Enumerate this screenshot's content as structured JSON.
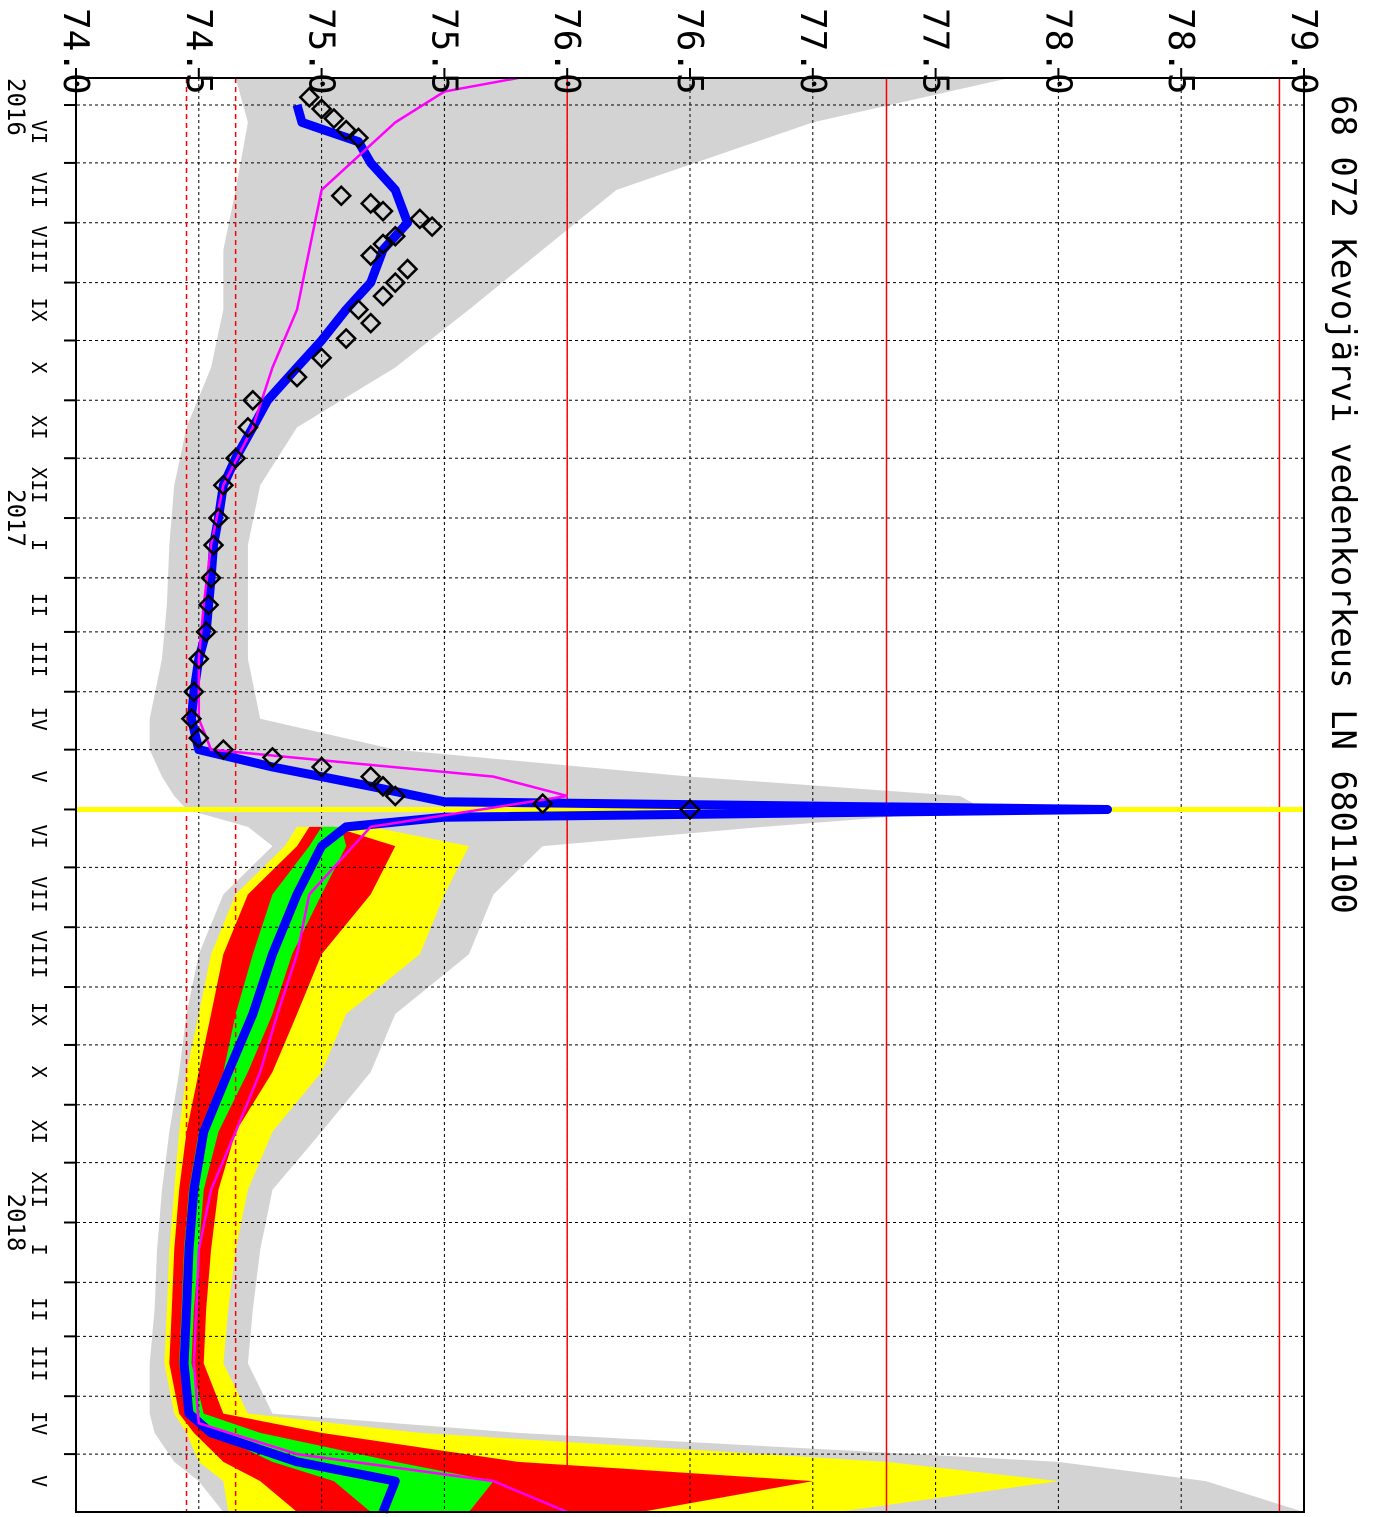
{
  "chart_data": {
    "type": "line",
    "title": "68 072 Kevojärvi vedenkorkeus LN 6801100",
    "x_unit": "date",
    "y_ticks": [
      "74.0",
      "74.5",
      "75.0",
      "75.5",
      "76.0",
      "76.5",
      "77.0",
      "77.5",
      "78.0",
      "78.5",
      "79.0"
    ],
    "ylim": [
      74.0,
      79.0
    ],
    "xlim": [
      "2016-05-18",
      "2018-05-31"
    ],
    "grid": true,
    "year_labels": [
      {
        "text": "2016",
        "date": "2016-05-18"
      },
      {
        "text": "2017",
        "date": "2017-01-01"
      },
      {
        "text": "2018",
        "date": "2018-01-01"
      }
    ],
    "month_labels": [
      {
        "text": "VI",
        "date": "2016-06-15"
      },
      {
        "text": "VII",
        "date": "2016-07-15"
      },
      {
        "text": "VIII",
        "date": "2016-08-15"
      },
      {
        "text": "IX",
        "date": "2016-09-15"
      },
      {
        "text": "X",
        "date": "2016-10-15"
      },
      {
        "text": "XI",
        "date": "2016-11-15"
      },
      {
        "text": "XII",
        "date": "2016-12-15"
      },
      {
        "text": "I",
        "date": "2017-01-15"
      },
      {
        "text": "II",
        "date": "2017-02-15"
      },
      {
        "text": "III",
        "date": "2017-03-15"
      },
      {
        "text": "IV",
        "date": "2017-04-15"
      },
      {
        "text": "V",
        "date": "2017-05-15"
      },
      {
        "text": "VI",
        "date": "2017-06-15"
      },
      {
        "text": "VII",
        "date": "2017-07-15"
      },
      {
        "text": "VIII",
        "date": "2017-08-15"
      },
      {
        "text": "IX",
        "date": "2017-09-15"
      },
      {
        "text": "X",
        "date": "2017-10-15"
      },
      {
        "text": "XI",
        "date": "2017-11-15"
      },
      {
        "text": "XII",
        "date": "2017-12-15"
      },
      {
        "text": "I",
        "date": "2018-01-15"
      },
      {
        "text": "II",
        "date": "2018-02-15"
      },
      {
        "text": "III",
        "date": "2018-03-15"
      },
      {
        "text": "IV",
        "date": "2018-04-15"
      },
      {
        "text": "V",
        "date": "2018-05-15"
      }
    ],
    "reference_lines": [
      {
        "value": 74.45,
        "color": "#ff0000",
        "style": "dashed"
      },
      {
        "value": 74.65,
        "color": "#ff0000",
        "style": "dashed"
      },
      {
        "value": 76.0,
        "color": "#ff0000",
        "style": "solid"
      },
      {
        "value": 77.3,
        "color": "#ff0000",
        "style": "solid"
      },
      {
        "value": 78.9,
        "color": "#ff0000",
        "style": "solid"
      }
    ],
    "current_date": "2017-06-01",
    "colors": {
      "envelope": "#d3d3d3",
      "yellow_band": "#ffff00",
      "red_band": "#ff0000",
      "green_band": "#00ff00",
      "observed": "#0000ff",
      "mean": "#ff00ff",
      "markers": "#000000",
      "current_date": "#ffff00",
      "grid": "#000000"
    },
    "series": [
      {
        "role": "envelope",
        "x": [
          "2016-05-18",
          "2016-06-10",
          "2016-07-15",
          "2016-08-15",
          "2016-09-15",
          "2016-10-15",
          "2016-11-15",
          "2016-12-15",
          "2017-01-15",
          "2017-02-15",
          "2017-03-15",
          "2017-04-15",
          "2017-05-01",
          "2017-05-15",
          "2017-05-25",
          "2017-06-01",
          "2017-06-10",
          "2017-06-20",
          "2017-07-15",
          "2017-08-15",
          "2017-09-15",
          "2017-10-15",
          "2017-11-15",
          "2017-12-15",
          "2018-01-15",
          "2018-02-15",
          "2018-03-15",
          "2018-04-10",
          "2018-04-20",
          "2018-05-05",
          "2018-05-15",
          "2018-05-31"
        ],
        "low": [
          74.65,
          74.7,
          74.65,
          74.6,
          74.6,
          74.55,
          74.45,
          74.4,
          74.38,
          74.37,
          74.35,
          74.3,
          74.3,
          74.35,
          74.4,
          74.45,
          74.7,
          74.8,
          74.6,
          74.5,
          74.45,
          74.42,
          74.38,
          74.35,
          74.33,
          74.32,
          74.3,
          74.3,
          74.32,
          74.4,
          74.5,
          74.6
        ],
        "high": [
          77.8,
          77.0,
          76.2,
          75.9,
          75.6,
          75.3,
          74.9,
          74.75,
          74.7,
          74.7,
          74.7,
          74.75,
          75.3,
          76.5,
          77.6,
          77.7,
          76.8,
          75.9,
          75.7,
          75.6,
          75.3,
          75.2,
          75.0,
          74.8,
          74.75,
          74.72,
          74.7,
          74.8,
          75.8,
          78.0,
          78.6,
          79.0
        ]
      },
      {
        "role": "yellow_band",
        "x": [
          "2017-06-10",
          "2017-06-20",
          "2017-07-15",
          "2017-08-15",
          "2017-09-15",
          "2017-10-15",
          "2017-11-15",
          "2017-12-15",
          "2018-01-15",
          "2018-02-15",
          "2018-03-15",
          "2018-04-10",
          "2018-04-20",
          "2018-05-05",
          "2018-05-15",
          "2018-05-31"
        ],
        "low": [
          74.9,
          74.85,
          74.65,
          74.55,
          74.5,
          74.45,
          74.42,
          74.4,
          74.38,
          74.37,
          74.36,
          74.4,
          74.45,
          74.5,
          74.6,
          74.62
        ],
        "high": [
          75.2,
          75.6,
          75.5,
          75.4,
          75.1,
          75.0,
          74.8,
          74.7,
          74.65,
          74.62,
          74.6,
          74.7,
          75.4,
          77.3,
          78.0,
          77.1
        ]
      },
      {
        "role": "red_band",
        "x": [
          "2017-06-10",
          "2017-06-20",
          "2017-07-15",
          "2017-08-15",
          "2017-09-15",
          "2017-10-15",
          "2017-11-15",
          "2017-12-15",
          "2018-01-15",
          "2018-02-15",
          "2018-03-15",
          "2018-04-10",
          "2018-04-20",
          "2018-05-05",
          "2018-05-15",
          "2018-05-31"
        ],
        "low": [
          74.95,
          74.9,
          74.7,
          74.6,
          74.55,
          74.5,
          74.45,
          74.42,
          74.4,
          74.39,
          74.38,
          74.42,
          74.48,
          74.6,
          74.75,
          74.9
        ],
        "high": [
          75.05,
          75.3,
          75.2,
          75.0,
          74.9,
          74.8,
          74.65,
          74.58,
          74.55,
          74.53,
          74.52,
          74.6,
          75.0,
          75.8,
          77.0,
          76.3
        ]
      },
      {
        "role": "green_band",
        "x": [
          "2017-06-10",
          "2017-06-20",
          "2017-07-15",
          "2017-08-15",
          "2017-09-15",
          "2017-10-15",
          "2017-11-15",
          "2017-12-15",
          "2018-01-15",
          "2018-02-15",
          "2018-03-15",
          "2018-04-10",
          "2018-04-20",
          "2018-05-05",
          "2018-05-15",
          "2018-05-31"
        ],
        "low": [
          75.0,
          74.95,
          74.8,
          74.72,
          74.65,
          74.6,
          74.5,
          74.46,
          74.44,
          74.43,
          74.42,
          74.45,
          74.55,
          74.8,
          75.05,
          75.2
        ],
        "high": [
          75.08,
          75.1,
          75.0,
          74.88,
          74.8,
          74.7,
          74.58,
          74.52,
          74.5,
          74.48,
          74.47,
          74.52,
          74.75,
          75.3,
          75.7,
          75.6
        ]
      },
      {
        "role": "observed",
        "x": [
          "2016-06-01",
          "2016-06-10",
          "2016-06-20",
          "2016-07-01",
          "2016-07-15",
          "2016-08-01",
          "2016-08-15",
          "2016-09-01",
          "2016-09-15",
          "2016-10-01",
          "2016-10-15",
          "2016-11-01",
          "2016-11-15",
          "2016-12-01",
          "2016-12-15",
          "2017-01-01",
          "2017-01-15",
          "2017-02-01",
          "2017-02-15",
          "2017-03-01",
          "2017-03-15",
          "2017-04-01",
          "2017-04-15",
          "2017-05-01",
          "2017-05-10",
          "2017-05-20",
          "2017-05-28",
          "2017-06-01",
          "2017-06-05",
          "2017-06-10",
          "2017-06-20",
          "2017-07-15",
          "2017-08-15",
          "2017-09-15",
          "2017-10-15",
          "2017-11-15",
          "2017-12-15",
          "2018-01-15",
          "2018-02-15",
          "2018-03-15",
          "2018-04-10",
          "2018-04-20",
          "2018-05-05",
          "2018-05-15",
          "2018-05-31"
        ],
        "values": [
          74.9,
          74.92,
          75.15,
          75.2,
          75.3,
          75.35,
          75.25,
          75.2,
          75.1,
          75.0,
          74.9,
          74.78,
          74.72,
          74.65,
          74.6,
          74.58,
          74.56,
          74.55,
          74.54,
          74.53,
          74.5,
          74.48,
          74.47,
          74.5,
          74.8,
          75.2,
          75.5,
          78.2,
          75.5,
          75.1,
          75.0,
          74.9,
          74.8,
          74.72,
          74.62,
          74.52,
          74.48,
          74.46,
          74.45,
          74.44,
          74.46,
          74.55,
          74.9,
          75.3,
          75.25
        ]
      },
      {
        "role": "mean",
        "x": [
          "2016-05-18",
          "2016-05-25",
          "2016-06-10",
          "2016-07-15",
          "2016-08-15",
          "2016-09-15",
          "2016-10-15",
          "2016-11-15",
          "2016-12-15",
          "2017-01-15",
          "2017-02-15",
          "2017-03-15",
          "2017-04-15",
          "2017-05-01",
          "2017-05-15",
          "2017-05-25",
          "2017-06-10",
          "2017-07-15",
          "2017-08-15",
          "2017-09-15",
          "2017-10-15",
          "2017-11-15",
          "2017-12-15",
          "2018-01-15",
          "2018-02-15",
          "2018-03-15",
          "2018-04-15",
          "2018-05-01",
          "2018-05-15",
          "2018-05-31"
        ],
        "values": [
          75.8,
          75.5,
          75.3,
          75.0,
          74.95,
          74.9,
          74.8,
          74.72,
          74.6,
          74.55,
          74.52,
          74.5,
          74.5,
          74.55,
          75.7,
          76.0,
          75.2,
          74.95,
          74.9,
          74.82,
          74.75,
          74.65,
          74.55,
          74.5,
          74.49,
          74.48,
          74.5,
          74.9,
          75.7,
          76.0
        ]
      },
      {
        "role": "markers",
        "x": [
          "2016-05-28",
          "2016-06-03",
          "2016-06-08",
          "2016-06-14",
          "2016-06-18",
          "2016-07-18",
          "2016-07-22",
          "2016-07-26",
          "2016-07-30",
          "2016-08-03",
          "2016-08-08",
          "2016-08-12",
          "2016-08-18",
          "2016-08-25",
          "2016-09-01",
          "2016-09-08",
          "2016-09-15",
          "2016-09-22",
          "2016-09-30",
          "2016-10-10",
          "2016-10-20",
          "2016-11-01",
          "2016-11-15",
          "2016-12-01",
          "2016-12-15",
          "2017-01-01",
          "2017-01-15",
          "2017-02-01",
          "2017-02-15",
          "2017-03-01",
          "2017-03-15",
          "2017-04-01",
          "2017-04-15",
          "2017-04-25",
          "2017-05-01",
          "2017-05-05",
          "2017-05-10",
          "2017-05-15",
          "2017-05-20",
          "2017-05-25",
          "2017-05-29",
          "2017-06-01"
        ],
        "values": [
          74.95,
          75.0,
          75.05,
          75.1,
          75.15,
          75.08,
          75.2,
          75.25,
          75.4,
          75.45,
          75.3,
          75.25,
          75.2,
          75.35,
          75.3,
          75.25,
          75.15,
          75.2,
          75.1,
          75.0,
          74.9,
          74.72,
          74.7,
          74.65,
          74.6,
          74.58,
          74.56,
          74.55,
          74.54,
          74.53,
          74.5,
          74.48,
          74.47,
          74.5,
          74.6,
          74.8,
          75.0,
          75.2,
          75.25,
          75.3,
          75.9,
          76.5
        ]
      }
    ]
  }
}
